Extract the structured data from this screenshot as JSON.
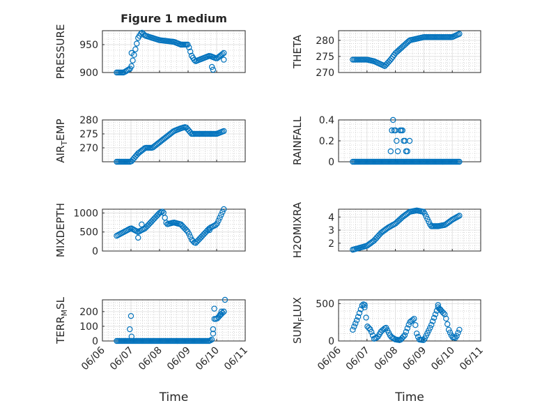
{
  "figure": {
    "title": "Figure 1 medium"
  },
  "chart_data": [
    {
      "id": "pressure",
      "type": "scatter",
      "title": "Figure 1 medium",
      "xlabel": "",
      "ylabel": "PRESSURE",
      "xlim": [
        "06/06",
        "06/11"
      ],
      "ylim": [
        900,
        975
      ],
      "yticks": [
        900,
        950
      ],
      "grid": true,
      "minor_grid": true,
      "legend": "none",
      "curve": [
        [
          "06/06 12:00",
          900
        ],
        [
          "06/06 18:00",
          900
        ],
        [
          "06/07 00:00",
          908
        ],
        [
          "06/07 03:00",
          935
        ],
        [
          "06/07 06:00",
          962
        ],
        [
          "06/07 09:00",
          972
        ],
        [
          "06/07 12:00",
          966
        ],
        [
          "06/07 18:00",
          962
        ],
        [
          "06/08 00:00",
          958
        ],
        [
          "06/08 12:00",
          955
        ],
        [
          "06/08 18:00",
          950
        ],
        [
          "06/09 00:00",
          950
        ],
        [
          "06/09 03:00",
          930
        ],
        [
          "06/09 06:00",
          920
        ],
        [
          "06/09 12:00",
          925
        ],
        [
          "06/09 18:00",
          930
        ],
        [
          "06/10 00:00",
          925
        ],
        [
          "06/10 06:00",
          935
        ]
      ],
      "points": [
        [
          "06/07 00:30",
          935
        ],
        [
          "06/09 20:00",
          910
        ],
        [
          "06/09 21:00",
          905
        ],
        [
          "06/10 06:00",
          923
        ],
        [
          "06/08 18:00",
          950
        ]
      ],
      "color": "#0072bd"
    },
    {
      "id": "theta",
      "type": "scatter",
      "xlabel": "",
      "ylabel": "THETA",
      "xlim": [
        "06/06",
        "06/11"
      ],
      "ylim": [
        270,
        283
      ],
      "yticks": [
        270,
        275,
        280
      ],
      "grid": true,
      "minor_grid": true,
      "legend": "none",
      "curve": [
        [
          "06/06 12:00",
          274
        ],
        [
          "06/07 00:00",
          274
        ],
        [
          "06/07 06:00",
          273.5
        ],
        [
          "06/07 12:00",
          272.5
        ],
        [
          "06/07 15:00",
          272
        ],
        [
          "06/07 20:00",
          274
        ],
        [
          "06/08 00:00",
          276
        ],
        [
          "06/08 06:00",
          278
        ],
        [
          "06/08 12:00",
          280
        ],
        [
          "06/08 18:00",
          280.5
        ],
        [
          "06/09 00:00",
          281
        ],
        [
          "06/09 12:00",
          281
        ],
        [
          "06/10 00:00",
          281
        ],
        [
          "06/10 06:00",
          282
        ]
      ],
      "points": [],
      "color": "#0072bd"
    },
    {
      "id": "air_temp",
      "type": "scatter",
      "xlabel": "",
      "ylabel": "AIR_TEMP",
      "ylabel_main": "AIR",
      "ylabel_sub": "T",
      "ylabel_rest": "EMP",
      "xlim": [
        "06/06",
        "06/11"
      ],
      "ylim": [
        265,
        280
      ],
      "yticks": [
        270,
        275,
        280
      ],
      "grid": true,
      "minor_grid": true,
      "legend": "none",
      "curve": [
        [
          "06/06 12:00",
          265
        ],
        [
          "06/07 00:00",
          265
        ],
        [
          "06/07 06:00",
          268
        ],
        [
          "06/07 12:00",
          270
        ],
        [
          "06/07 18:00",
          270
        ],
        [
          "06/08 00:00",
          272
        ],
        [
          "06/08 06:00",
          274
        ],
        [
          "06/08 12:00",
          276
        ],
        [
          "06/08 18:00",
          277
        ],
        [
          "06/08 22:00",
          277.5
        ],
        [
          "06/09 03:00",
          275
        ],
        [
          "06/09 12:00",
          275
        ],
        [
          "06/10 00:00",
          275
        ],
        [
          "06/10 06:00",
          276
        ]
      ],
      "points": [
        [
          "06/07 06:00",
          268
        ]
      ],
      "color": "#0072bd"
    },
    {
      "id": "rainfall",
      "type": "scatter",
      "xlabel": "",
      "ylabel": "RAINFALL",
      "xlim": [
        "06/06",
        "06/11"
      ],
      "ylim": [
        0,
        0.4
      ],
      "yticks": [
        0,
        0.2,
        0.4
      ],
      "grid": true,
      "minor_grid": true,
      "legend": "none",
      "curve": [
        [
          "06/06 12:00",
          0
        ],
        [
          "06/10 06:00",
          0
        ]
      ],
      "points": [
        [
          "06/07 20:00",
          0.1
        ],
        [
          "06/07 21:00",
          0.3
        ],
        [
          "06/07 22:00",
          0.4
        ],
        [
          "06/07 23:00",
          0.3
        ],
        [
          "06/08 00:00",
          0.3
        ],
        [
          "06/08 01:00",
          0.2
        ],
        [
          "06/08 02:00",
          0.1
        ],
        [
          "06/08 04:00",
          0.3
        ],
        [
          "06/08 05:00",
          0.3
        ],
        [
          "06/08 07:00",
          0.2
        ],
        [
          "06/08 08:00",
          0.2
        ],
        [
          "06/08 09:00",
          0.1
        ],
        [
          "06/08 10:00",
          0.1
        ],
        [
          "06/08 12:00",
          0.2
        ],
        [
          "06/08 06:00",
          0.3
        ]
      ],
      "color": "#0072bd"
    },
    {
      "id": "mixdepth",
      "type": "scatter",
      "xlabel": "",
      "ylabel": "MIXDEPTH",
      "xlim": [
        "06/06",
        "06/11"
      ],
      "ylim": [
        0,
        1100
      ],
      "yticks": [
        0,
        500,
        1000
      ],
      "grid": true,
      "minor_grid": true,
      "legend": "none",
      "curve": [
        [
          "06/06 12:00",
          400
        ],
        [
          "06/06 18:00",
          500
        ],
        [
          "06/07 00:00",
          600
        ],
        [
          "06/07 06:00",
          500
        ],
        [
          "06/07 12:00",
          600
        ],
        [
          "06/07 18:00",
          800
        ],
        [
          "06/08 00:00",
          1000
        ],
        [
          "06/08 03:00",
          1050
        ],
        [
          "06/08 06:00",
          700
        ],
        [
          "06/08 12:00",
          750
        ],
        [
          "06/08 18:00",
          700
        ],
        [
          "06/09 00:00",
          500
        ],
        [
          "06/09 03:00",
          300
        ],
        [
          "06/09 06:00",
          200
        ],
        [
          "06/09 12:00",
          400
        ],
        [
          "06/09 18:00",
          600
        ],
        [
          "06/10 00:00",
          700
        ],
        [
          "06/10 06:00",
          1100
        ]
      ],
      "points": [
        [
          "06/07 06:00",
          350
        ],
        [
          "06/07 09:00",
          700
        ],
        [
          "06/09 18:00",
          550
        ]
      ],
      "color": "#0072bd"
    },
    {
      "id": "h2omixra",
      "type": "scatter",
      "xlabel": "",
      "ylabel": "H2OMIXRA",
      "xlim": [
        "06/06",
        "06/11"
      ],
      "ylim": [
        1.4,
        4.6
      ],
      "yticks": [
        2,
        3,
        4
      ],
      "grid": true,
      "minor_grid": true,
      "legend": "none",
      "curve": [
        [
          "06/06 12:00",
          1.5
        ],
        [
          "06/07 00:00",
          1.8
        ],
        [
          "06/07 06:00",
          2.2
        ],
        [
          "06/07 12:00",
          2.8
        ],
        [
          "06/07 18:00",
          3.2
        ],
        [
          "06/08 00:00",
          3.5
        ],
        [
          "06/08 06:00",
          4.0
        ],
        [
          "06/08 12:00",
          4.4
        ],
        [
          "06/08 18:00",
          4.5
        ],
        [
          "06/09 00:00",
          4.4
        ],
        [
          "06/09 06:00",
          3.3
        ],
        [
          "06/09 12:00",
          3.3
        ],
        [
          "06/09 18:00",
          3.4
        ],
        [
          "06/10 00:00",
          3.8
        ],
        [
          "06/10 06:00",
          4.1
        ]
      ],
      "points": [],
      "color": "#0072bd"
    },
    {
      "id": "terr_msl",
      "type": "scatter",
      "xlabel": "Time",
      "ylabel": "TERR_MSL",
      "ylabel_main": "TERR",
      "ylabel_sub": "M",
      "ylabel_rest": "SL",
      "xlim": [
        "06/06",
        "06/11"
      ],
      "ylim": [
        0,
        280
      ],
      "yticks": [
        0,
        100,
        200
      ],
      "xticks": [
        "06/06",
        "06/07",
        "06/08",
        "06/09",
        "06/10",
        "06/11"
      ],
      "grid": true,
      "minor_grid": true,
      "legend": "none",
      "curve": [
        [
          "06/06 12:00",
          0
        ],
        [
          "06/09 18:00",
          0
        ],
        [
          "06/09 20:00",
          10
        ],
        [
          "06/09 22:00",
          150
        ],
        [
          "06/10 00:00",
          150
        ],
        [
          "06/10 06:00",
          200
        ]
      ],
      "points": [
        [
          "06/07 00:00",
          170
        ],
        [
          "06/06 23:00",
          80
        ],
        [
          "06/07 00:30",
          30
        ],
        [
          "06/09 21:00",
          50
        ],
        [
          "06/09 22:00",
          220
        ],
        [
          "06/10 03:00",
          180
        ],
        [
          "06/10 04:00",
          200
        ],
        [
          "06/10 07:00",
          280
        ],
        [
          "06/10 06:00",
          200
        ]
      ],
      "color": "#0072bd"
    },
    {
      "id": "sun_flux",
      "type": "scatter",
      "xlabel": "Time",
      "ylabel": "SUN_FLUX",
      "ylabel_main": "SUN",
      "ylabel_sub": "F",
      "ylabel_rest": "LUX",
      "xlim": [
        "06/06",
        "06/11"
      ],
      "ylim": [
        0,
        550
      ],
      "yticks": [
        0,
        500
      ],
      "xticks": [
        "06/06",
        "06/07",
        "06/08",
        "06/09",
        "06/10",
        "06/11"
      ],
      "grid": true,
      "minor_grid": true,
      "legend": "none",
      "curve": [
        [
          "06/06 12:00",
          150
        ],
        [
          "06/06 16:00",
          300
        ],
        [
          "06/06 20:00",
          480
        ],
        [
          "06/06 22:00",
          500
        ],
        [
          "06/07 00:00",
          200
        ],
        [
          "06/07 03:00",
          150
        ],
        [
          "06/07 06:00",
          30
        ],
        [
          "06/07 09:00",
          50
        ],
        [
          "06/07 12:00",
          130
        ],
        [
          "06/07 16:00",
          180
        ],
        [
          "06/07 20:00",
          60
        ],
        [
          "06/08 00:00",
          20
        ],
        [
          "06/08 04:00",
          10
        ],
        [
          "06/08 08:00",
          80
        ],
        [
          "06/08 12:00",
          250
        ],
        [
          "06/08 16:00",
          300
        ],
        [
          "06/08 18:00",
          100
        ],
        [
          "06/08 20:00",
          20
        ],
        [
          "06/09 00:00",
          10
        ],
        [
          "06/09 06:00",
          200
        ],
        [
          "06/09 12:00",
          450
        ],
        [
          "06/09 18:00",
          350
        ],
        [
          "06/09 21:00",
          150
        ],
        [
          "06/10 00:00",
          50
        ],
        [
          "06/10 03:00",
          40
        ],
        [
          "06/10 06:00",
          150
        ]
      ],
      "points": [
        [
          "06/06 22:00",
          450
        ],
        [
          "06/09 12:00",
          480
        ],
        [
          "06/09 14:00",
          420
        ]
      ],
      "color": "#0072bd"
    }
  ]
}
